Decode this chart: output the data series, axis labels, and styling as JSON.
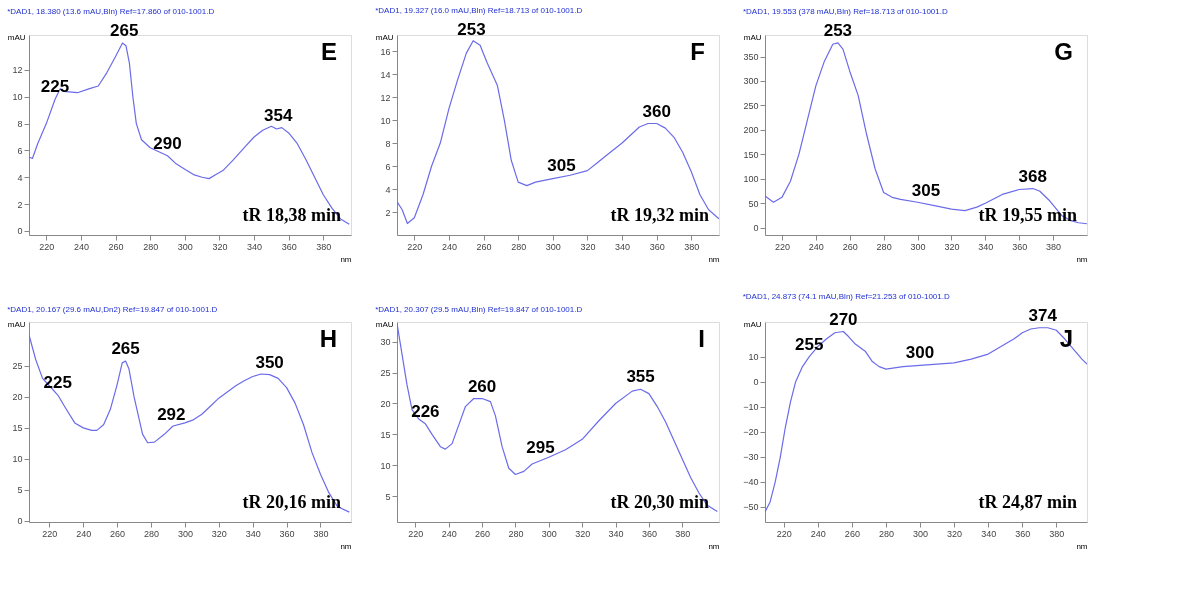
{
  "chart_data": [
    {
      "type": "line",
      "title": "*DAD1, 18.380 (13.6 mAU,Bln) Ref=17.860 of 010-1001.D",
      "xlabel": "nm",
      "ylabel": "mAU",
      "xlim": [
        210,
        396
      ],
      "xticks": [
        220,
        240,
        260,
        280,
        300,
        320,
        340,
        360,
        380
      ],
      "ylim": [
        -0.3,
        14.6
      ],
      "yticks": [
        0,
        2,
        4,
        6,
        8,
        10,
        12
      ],
      "series": [
        {
          "color": "#6b6bea",
          "x": [
            210,
            212,
            215,
            220,
            225,
            228,
            230,
            238,
            245,
            250,
            255,
            260,
            264,
            266,
            268,
            270,
            272,
            275,
            280,
            285,
            290,
            295,
            300,
            305,
            310,
            314,
            318,
            322,
            328,
            335,
            340,
            345,
            350,
            353,
            356,
            360,
            365,
            370,
            375,
            380,
            385,
            390,
            395
          ],
          "values": [
            5.5,
            5.4,
            6.5,
            8,
            9.8,
            10.6,
            10.4,
            10.3,
            10.6,
            10.8,
            11.8,
            13.0,
            14.0,
            13.8,
            12.5,
            10,
            8,
            6.8,
            6.2,
            5.9,
            5.6,
            5.0,
            4.6,
            4.2,
            4.0,
            3.9,
            4.2,
            4.5,
            5.3,
            6.3,
            7.0,
            7.5,
            7.8,
            7.6,
            7.7,
            7.3,
            6.5,
            5.3,
            4.0,
            2.7,
            1.7,
            0.9,
            0.5
          ]
        }
      ],
      "annotations": [
        "E",
        "tR 18,38 min",
        {
          "text": "225",
          "x": 225,
          "y": 9.8
        },
        {
          "text": "265",
          "x": 265,
          "y": 14.0
        },
        {
          "text": "290",
          "x": 290,
          "y": 5.6
        },
        {
          "text": "354",
          "x": 354,
          "y": 7.7
        }
      ]
    },
    {
      "type": "line",
      "title": "*DAD1, 19.327 (16.0 mAU,Bln) Ref=18.713 of 010-1001.D",
      "xlabel": "nm",
      "ylabel": "mAU",
      "xlim": [
        210,
        396
      ],
      "xticks": [
        220,
        240,
        260,
        280,
        300,
        320,
        340,
        360,
        380
      ],
      "ylim": [
        0,
        17.4
      ],
      "yticks": [
        2,
        4,
        6,
        8,
        10,
        12,
        14,
        16
      ],
      "series": [
        {
          "color": "#6b6bea",
          "x": [
            210,
            213,
            216,
            220,
            225,
            230,
            235,
            240,
            245,
            250,
            254,
            258,
            262,
            268,
            272,
            276,
            280,
            285,
            290,
            300,
            310,
            320,
            325,
            330,
            340,
            350,
            355,
            360,
            365,
            370,
            375,
            380,
            385,
            390,
            396
          ],
          "values": [
            2.9,
            2.2,
            1.0,
            1.5,
            3.5,
            6,
            8,
            11,
            13.5,
            15.8,
            16.9,
            16.5,
            15,
            13,
            10,
            6.5,
            4.6,
            4.3,
            4.6,
            4.9,
            5.2,
            5.6,
            6.2,
            6.8,
            8.0,
            9.4,
            9.7,
            9.7,
            9.3,
            8.5,
            7.2,
            5.5,
            3.5,
            2.2,
            1.4
          ]
        }
      ],
      "annotations": [
        "F",
        "tR 19,32 min",
        {
          "text": "253",
          "x": 253,
          "y": 16.8
        },
        {
          "text": "305",
          "x": 305,
          "y": 5.0
        },
        {
          "text": "360",
          "x": 360,
          "y": 9.7
        }
      ]
    },
    {
      "type": "line",
      "title": "*DAD1, 19.553 (378 mAU,Bln) Ref=18.713 of 010-1001.D",
      "xlabel": "nm",
      "ylabel": "mAU",
      "xlim": [
        210,
        400
      ],
      "xticks": [
        220,
        240,
        260,
        280,
        300,
        320,
        340,
        360,
        380
      ],
      "ylim": [
        -15,
        394
      ],
      "yticks": [
        0,
        50,
        100,
        150,
        200,
        250,
        300,
        350
      ],
      "series": [
        {
          "color": "#6b6bea",
          "x": [
            210,
            215,
            220,
            225,
            230,
            235,
            240,
            245,
            250,
            253,
            256,
            260,
            265,
            270,
            275,
            280,
            285,
            290,
            300,
            310,
            320,
            328,
            335,
            340,
            350,
            360,
            368,
            372,
            378,
            385,
            390,
            395,
            400
          ],
          "values": [
            65,
            52,
            62,
            95,
            150,
            220,
            290,
            340,
            375,
            378,
            365,
            320,
            270,
            190,
            120,
            72,
            62,
            58,
            52,
            45,
            38,
            35,
            42,
            50,
            68,
            78,
            80,
            75,
            55,
            25,
            15,
            10,
            8
          ]
        }
      ],
      "annotations": [
        "G",
        "tR 19,55 min",
        {
          "text": "253",
          "x": 253,
          "y": 378
        },
        {
          "text": "305",
          "x": 305,
          "y": 50
        },
        {
          "text": "368",
          "x": 368,
          "y": 80
        }
      ]
    },
    {
      "type": "line",
      "title": "*DAD1, 20.167 (29.6 mAU,Dn2) Ref=19.847 of 010-1001.D",
      "xlabel": "nm",
      "ylabel": "mAU",
      "xlim": [
        208,
        398
      ],
      "xticks": [
        220,
        240,
        260,
        280,
        300,
        320,
        340,
        360,
        380
      ],
      "ylim": [
        -0.2,
        32.1
      ],
      "yticks": [
        0,
        5,
        10,
        15,
        20,
        25
      ],
      "series": [
        {
          "color": "#6b6bea",
          "x": [
            208,
            212,
            216,
            220,
            225,
            230,
            235,
            240,
            245,
            248,
            252,
            256,
            260,
            263,
            265,
            267,
            270,
            275,
            278,
            282,
            288,
            293,
            300,
            305,
            310,
            315,
            320,
            325,
            330,
            335,
            340,
            345,
            350,
            355,
            360,
            365,
            370,
            375,
            380,
            385,
            390,
            397
          ],
          "values": [
            30,
            26,
            23,
            21.8,
            20.3,
            18,
            15.8,
            15,
            14.6,
            14.6,
            15.5,
            18,
            22,
            25.5,
            25.8,
            24.5,
            20,
            14,
            12.6,
            12.7,
            14,
            15.3,
            15.8,
            16.3,
            17.2,
            18.5,
            19.8,
            20.8,
            21.8,
            22.6,
            23.3,
            23.7,
            23.6,
            23,
            21.5,
            19,
            15.5,
            11,
            7.5,
            4.5,
            2.3,
            1.4
          ]
        }
      ],
      "annotations": [
        "H",
        "tR 20,16 min",
        {
          "text": "225",
          "x": 225,
          "y": 20.3
        },
        {
          "text": "265",
          "x": 265,
          "y": 25.8
        },
        {
          "text": "292",
          "x": 292,
          "y": 15.2
        },
        {
          "text": "350",
          "x": 350,
          "y": 23.6
        }
      ]
    },
    {
      "type": "line",
      "title": "*DAD1, 20.307 (29.5 mAU,Bln) Ref=19.847 of 010-1001.D",
      "xlabel": "nm",
      "ylabel": "mAU",
      "xlim": [
        209,
        402
      ],
      "xticks": [
        220,
        240,
        260,
        280,
        300,
        320,
        340,
        360,
        380
      ],
      "ylim": [
        0.8,
        33.2
      ],
      "yticks": [
        5,
        10,
        15,
        20,
        25,
        30
      ],
      "series": [
        {
          "color": "#6b6bea",
          "x": [
            209,
            212,
            215,
            218,
            222,
            226,
            230,
            235,
            238,
            242,
            246,
            250,
            255,
            260,
            265,
            268,
            272,
            276,
            280,
            285,
            290,
            300,
            310,
            320,
            330,
            340,
            350,
            355,
            360,
            365,
            370,
            375,
            380,
            385,
            390,
            395,
            401
          ],
          "values": [
            33,
            28,
            23,
            19,
            17.5,
            16.7,
            15,
            13,
            12.6,
            13.5,
            16.5,
            19.5,
            20.8,
            20.8,
            20.3,
            18,
            13,
            9.5,
            8.5,
            9,
            10.2,
            11.3,
            12.5,
            14.2,
            17.2,
            20,
            22,
            22.3,
            21.6,
            19.5,
            17,
            14,
            11,
            8,
            5.5,
            3.5,
            2.5
          ]
        }
      ],
      "annotations": [
        "I",
        "tR 20,30 min",
        {
          "text": "226",
          "x": 226,
          "y": 16.7
        },
        {
          "text": "260",
          "x": 260,
          "y": 20.8
        },
        {
          "text": "295",
          "x": 295,
          "y": 10.8
        },
        {
          "text": "355",
          "x": 355,
          "y": 22.3
        }
      ]
    },
    {
      "type": "line",
      "title": "*DAD1, 24.873 (74.1 mAU,Bln) Ref=21.253 of 010-1001.D",
      "xlabel": "nm",
      "ylabel": "mAU",
      "xlim": [
        209,
        398
      ],
      "xticks": [
        220,
        240,
        260,
        280,
        300,
        320,
        340,
        360,
        380
      ],
      "ylim": [
        -56,
        23.8
      ],
      "yticks": [
        -50,
        -40,
        -30,
        -20,
        -10,
        0,
        10
      ],
      "series": [
        {
          "color": "#6b6bea",
          "x": [
            209,
            212,
            215,
            218,
            221,
            224,
            227,
            231,
            235,
            240,
            245,
            250,
            255,
            258,
            262,
            268,
            272,
            276,
            280,
            285,
            290,
            300,
            310,
            320,
            330,
            340,
            345,
            350,
            355,
            360,
            365,
            370,
            375,
            380,
            385,
            390,
            395,
            398
          ],
          "values": [
            -52,
            -48,
            -40,
            -30,
            -18,
            -8,
            0,
            6,
            10,
            14,
            17,
            19.5,
            20,
            18,
            15,
            12,
            8,
            6,
            5,
            5.5,
            6,
            6.5,
            7,
            7.5,
            9,
            11,
            13,
            15,
            17,
            19.5,
            21,
            21.5,
            21.5,
            20.5,
            17,
            13,
            9,
            7
          ]
        }
      ],
      "annotations": [
        "J",
        "tR 24,87 min",
        {
          "text": "270",
          "x": 255,
          "y": 20
        },
        {
          "text": "255",
          "x": 235,
          "y": 10
        },
        {
          "text": "300",
          "x": 300,
          "y": 6.5
        },
        {
          "text": "374",
          "x": 372,
          "y": 21.5
        }
      ]
    }
  ]
}
